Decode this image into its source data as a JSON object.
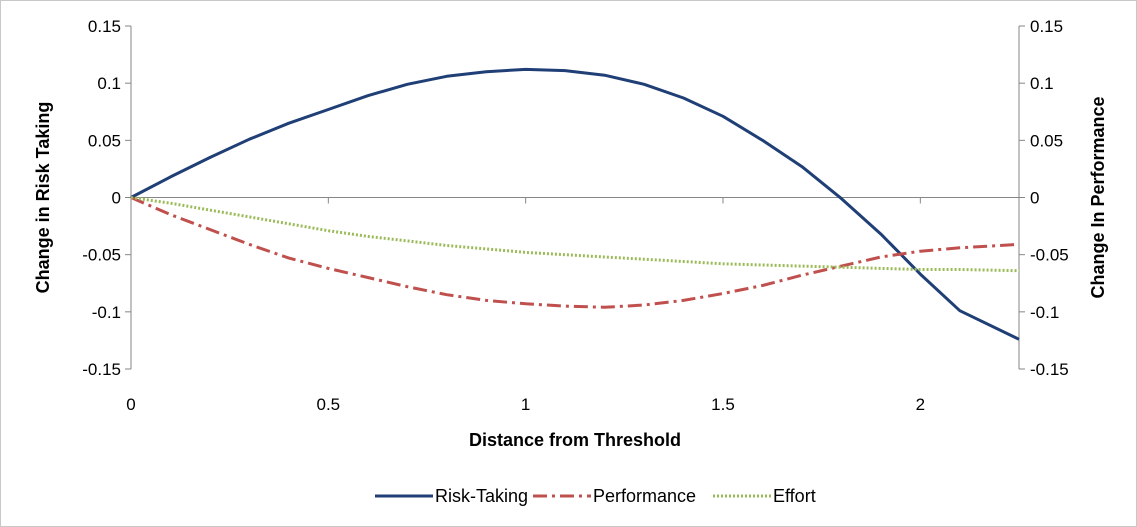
{
  "chart_data": {
    "type": "line",
    "xlabel": "Distance from Threshold",
    "ylabel": "Change in Risk Taking",
    "y2label": "Change In Performance",
    "xlim": [
      0,
      2.25
    ],
    "ylim": [
      -0.15,
      0.15
    ],
    "y2lim": [
      -0.15,
      0.15
    ],
    "x_ticks": [
      "0",
      "0.5",
      "1",
      "1.5",
      "2"
    ],
    "x_tick_values": [
      0,
      0.5,
      1,
      1.5,
      2
    ],
    "y_ticks": [
      "0.15",
      "0.1",
      "0.05",
      "0",
      "-0.05",
      "-0.1",
      "-0.15"
    ],
    "y_tick_values": [
      0.15,
      0.1,
      0.05,
      0,
      -0.05,
      -0.1,
      -0.15
    ],
    "y2_ticks": [
      "0.15",
      "0.1",
      "0.05",
      "0",
      "-0.05",
      "-0.1",
      "-0.15"
    ],
    "grid": false,
    "legend_position": "bottom",
    "series": [
      {
        "name": "Risk-Taking",
        "color": "#1f3f76",
        "style": "solid",
        "points": [
          [
            0,
            0
          ],
          [
            0.1,
            0.018
          ],
          [
            0.2,
            0.035
          ],
          [
            0.3,
            0.051
          ],
          [
            0.4,
            0.065
          ],
          [
            0.5,
            0.077
          ],
          [
            0.6,
            0.089
          ],
          [
            0.7,
            0.099
          ],
          [
            0.8,
            0.106
          ],
          [
            0.9,
            0.11
          ],
          [
            1.0,
            0.112
          ],
          [
            1.1,
            0.111
          ],
          [
            1.2,
            0.107
          ],
          [
            1.3,
            0.099
          ],
          [
            1.4,
            0.087
          ],
          [
            1.5,
            0.071
          ],
          [
            1.6,
            0.05
          ],
          [
            1.7,
            0.027
          ],
          [
            1.8,
            -0.001
          ],
          [
            1.9,
            -0.032
          ],
          [
            2.0,
            -0.067
          ],
          [
            2.1,
            -0.099
          ],
          [
            2.25,
            -0.124
          ]
        ]
      },
      {
        "name": "Performance",
        "color": "#c0504d",
        "style": "dashdot",
        "points": [
          [
            0,
            0
          ],
          [
            0.1,
            -0.015
          ],
          [
            0.2,
            -0.028
          ],
          [
            0.3,
            -0.041
          ],
          [
            0.4,
            -0.053
          ],
          [
            0.5,
            -0.062
          ],
          [
            0.6,
            -0.07
          ],
          [
            0.7,
            -0.078
          ],
          [
            0.8,
            -0.085
          ],
          [
            0.9,
            -0.09
          ],
          [
            1.0,
            -0.093
          ],
          [
            1.1,
            -0.095
          ],
          [
            1.2,
            -0.096
          ],
          [
            1.3,
            -0.094
          ],
          [
            1.4,
            -0.09
          ],
          [
            1.5,
            -0.084
          ],
          [
            1.6,
            -0.077
          ],
          [
            1.7,
            -0.068
          ],
          [
            1.8,
            -0.06
          ],
          [
            1.9,
            -0.052
          ],
          [
            2.0,
            -0.047
          ],
          [
            2.1,
            -0.044
          ],
          [
            2.25,
            -0.041
          ]
        ]
      },
      {
        "name": "Effort",
        "color": "#9bbb59",
        "style": "dotted",
        "points": [
          [
            0,
            0
          ],
          [
            0.1,
            -0.005
          ],
          [
            0.2,
            -0.011
          ],
          [
            0.3,
            -0.017
          ],
          [
            0.4,
            -0.023
          ],
          [
            0.5,
            -0.029
          ],
          [
            0.6,
            -0.034
          ],
          [
            0.7,
            -0.038
          ],
          [
            0.8,
            -0.042
          ],
          [
            0.9,
            -0.045
          ],
          [
            1.0,
            -0.048
          ],
          [
            1.1,
            -0.05
          ],
          [
            1.2,
            -0.052
          ],
          [
            1.3,
            -0.054
          ],
          [
            1.4,
            -0.056
          ],
          [
            1.5,
            -0.058
          ],
          [
            1.6,
            -0.059
          ],
          [
            1.7,
            -0.06
          ],
          [
            1.8,
            -0.061
          ],
          [
            1.9,
            -0.062
          ],
          [
            2.0,
            -0.063
          ],
          [
            2.1,
            -0.063
          ],
          [
            2.25,
            -0.064
          ]
        ]
      }
    ]
  }
}
